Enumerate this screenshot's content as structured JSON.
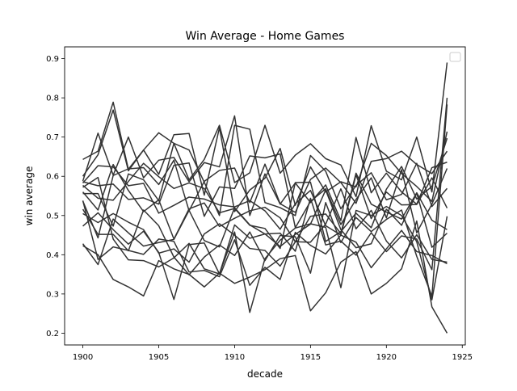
{
  "chart_data": {
    "type": "line",
    "title": "Win Average - Home Games",
    "xlabel": "decade",
    "ylabel": "win average",
    "xlim": [
      1898.8,
      1925.2
    ],
    "ylim": [
      0.17,
      0.93
    ],
    "xticks": [
      1900,
      1905,
      1910,
      1915,
      1920,
      1925
    ],
    "yticks": [
      0.2,
      0.3,
      0.4,
      0.5,
      0.6,
      0.7,
      0.8,
      0.9
    ],
    "grid": false,
    "legend": "top-right (empty)",
    "line_color": "#333333",
    "x": [
      1900,
      1901,
      1902,
      1903,
      1904,
      1905,
      1906,
      1907,
      1908,
      1909,
      1910,
      1911,
      1912,
      1913,
      1914,
      1915,
      1916,
      1917,
      1918,
      1919,
      1920,
      1921,
      1922,
      1923,
      1924
    ],
    "series": [
      {
        "values": [
          0.643,
          0.664,
          0.789,
          0.618,
          0.667,
          0.711,
          0.684,
          0.591,
          0.643,
          0.73,
          0.584,
          0.609,
          0.73,
          0.608,
          0.654,
          0.683,
          0.645,
          0.629,
          0.548,
          0.729,
          0.613,
          0.591,
          0.7,
          0.56,
          0.89
        ]
      },
      {
        "values": [
          0.6,
          0.655,
          0.769,
          0.614,
          0.667,
          0.605,
          0.706,
          0.709,
          0.552,
          0.724,
          0.51,
          0.565,
          0.595,
          0.671,
          0.526,
          0.624,
          0.56,
          0.586,
          0.573,
          0.684,
          0.653,
          0.607,
          0.574,
          0.536,
          0.714
        ]
      },
      {
        "values": [
          0.588,
          0.71,
          0.603,
          0.7,
          0.596,
          0.641,
          0.648,
          0.586,
          0.635,
          0.624,
          0.754,
          0.5,
          0.606,
          0.529,
          0.583,
          0.533,
          0.578,
          0.487,
          0.699,
          0.558,
          0.608,
          0.56,
          0.529,
          0.622,
          0.636
        ]
      },
      {
        "values": [
          0.537,
          0.443,
          0.602,
          0.619,
          0.622,
          0.579,
          0.641,
          0.512,
          0.587,
          0.615,
          0.621,
          0.533,
          0.631,
          0.53,
          0.508,
          0.592,
          0.621,
          0.584,
          0.531,
          0.638,
          0.645,
          0.664,
          0.63,
          0.607,
          0.664
        ]
      },
      {
        "values": [
          0.556,
          0.556,
          0.473,
          0.606,
          0.591,
          0.538,
          0.684,
          0.667,
          0.585,
          0.5,
          0.73,
          0.72,
          0.533,
          0.52,
          0.5,
          0.653,
          0.613,
          0.517,
          0.577,
          0.609,
          0.54,
          0.554,
          0.633,
          0.523,
          0.569
        ]
      },
      {
        "values": [
          0.577,
          0.544,
          0.539,
          0.587,
          0.633,
          0.599,
          0.569,
          0.583,
          0.569,
          0.507,
          0.518,
          0.475,
          0.467,
          0.416,
          0.584,
          0.585,
          0.434,
          0.459,
          0.506,
          0.469,
          0.567,
          0.625,
          0.542,
          0.574,
          0.697
        ]
      },
      {
        "values": [
          0.586,
          0.576,
          0.58,
          0.541,
          0.545,
          0.529,
          0.628,
          0.634,
          0.498,
          0.573,
          0.569,
          0.652,
          0.647,
          0.657,
          0.469,
          0.536,
          0.568,
          0.477,
          0.541,
          0.596,
          0.494,
          0.617,
          0.456,
          0.529,
          0.62
        ]
      },
      {
        "values": [
          0.583,
          0.627,
          0.624,
          0.576,
          0.582,
          0.506,
          0.526,
          0.547,
          0.542,
          0.527,
          0.522,
          0.538,
          0.512,
          0.465,
          0.53,
          0.564,
          0.474,
          0.45,
          0.604,
          0.492,
          0.56,
          0.527,
          0.528,
          0.596,
          0.519
        ]
      },
      {
        "values": [
          0.56,
          0.514,
          0.63,
          0.564,
          0.51,
          0.54,
          0.44,
          0.517,
          0.532,
          0.472,
          0.493,
          0.512,
          0.521,
          0.494,
          0.433,
          0.498,
          0.504,
          0.454,
          0.608,
          0.529,
          0.509,
          0.491,
          0.558,
          0.488,
          0.464
        ]
      },
      {
        "values": [
          0.428,
          0.375,
          0.491,
          0.456,
          0.422,
          0.431,
          0.439,
          0.513,
          0.436,
          0.42,
          0.52,
          0.476,
          0.453,
          0.421,
          0.452,
          0.478,
          0.565,
          0.464,
          0.418,
          0.428,
          0.516,
          0.475,
          0.557,
          0.419,
          0.455
        ]
      },
      {
        "values": [
          0.538,
          0.388,
          0.42,
          0.411,
          0.401,
          0.44,
          0.434,
          0.356,
          0.36,
          0.344,
          0.438,
          0.322,
          0.368,
          0.337,
          0.457,
          0.424,
          0.402,
          0.45,
          0.432,
          0.367,
          0.415,
          0.462,
          0.408,
          0.398,
          0.377
        ]
      },
      {
        "values": [
          0.423,
          0.4,
          0.337,
          0.318,
          0.295,
          0.385,
          0.364,
          0.35,
          0.318,
          0.353,
          0.327,
          0.343,
          0.362,
          0.39,
          0.398,
          0.257,
          0.303,
          0.381,
          0.408,
          0.3,
          0.327,
          0.364,
          0.486,
          0.267,
          0.2
        ]
      },
      {
        "values": [
          0.473,
          0.507,
          0.464,
          0.427,
          0.46,
          0.406,
          0.286,
          0.426,
          0.43,
          0.351,
          0.458,
          0.253,
          0.39,
          0.437,
          0.468,
          0.479,
          0.47,
          0.316,
          0.513,
          0.5,
          0.523,
          0.5,
          0.433,
          0.285,
          0.498
        ]
      },
      {
        "values": [
          0.516,
          0.452,
          0.452,
          0.41,
          0.514,
          0.474,
          0.394,
          0.349,
          0.394,
          0.425,
          0.398,
          0.458,
          0.385,
          0.449,
          0.446,
          0.353,
          0.533,
          0.431,
          0.495,
          0.459,
          0.49,
          0.514,
          0.396,
          0.294,
          0.783
        ]
      },
      {
        "values": [
          0.572,
          0.597,
          0.44,
          0.387,
          0.385,
          0.369,
          0.392,
          0.429,
          0.364,
          0.351,
          0.476,
          0.442,
          0.453,
          0.455,
          0.409,
          0.544,
          0.425,
          0.435,
          0.399,
          0.456,
          0.408,
          0.448,
          0.44,
          0.362,
          0.8
        ]
      },
      {
        "values": [
          0.505,
          0.482,
          0.505,
          0.483,
          0.464,
          0.404,
          0.415,
          0.381,
          0.453,
          0.479,
          0.45,
          0.416,
          0.411,
          0.371,
          0.433,
          0.432,
          0.478,
          0.568,
          0.466,
          0.513,
          0.435,
          0.392,
          0.451,
          0.388,
          0.381
        ]
      }
    ]
  }
}
